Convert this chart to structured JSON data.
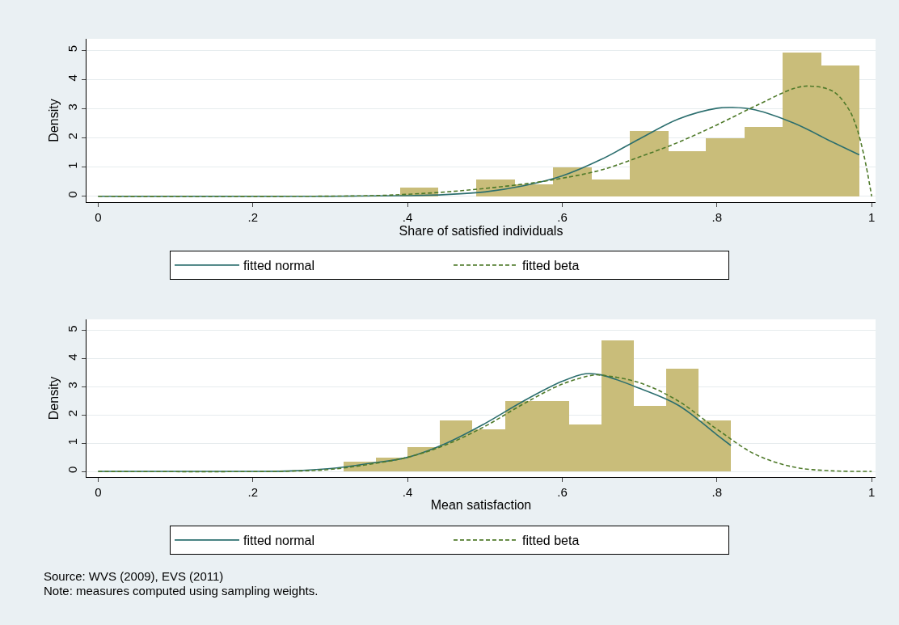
{
  "chart_data": [
    {
      "type": "histogram",
      "xlabel": "Share of satisfied individuals",
      "ylabel": "Density",
      "color": "#c9bd7a",
      "bins": [
        0.39,
        0.44,
        0.489,
        0.539,
        0.588,
        0.638,
        0.687,
        0.737,
        0.786,
        0.836,
        0.885,
        0.935,
        0.984
      ],
      "values": [
        0.3,
        0,
        0.58,
        0.42,
        1.0,
        0.58,
        2.25,
        1.55,
        2.0,
        2.38,
        4.92,
        4.48
      ],
      "series": [
        {
          "type": "line",
          "name": "fitted normal",
          "color": "#2b6e6e",
          "line_style": "solid",
          "x": [
            0,
            0.3,
            0.4,
            0.45,
            0.5,
            0.55,
            0.6,
            0.65,
            0.7,
            0.75,
            0.8,
            0.82,
            0.85,
            0.9,
            0.95,
            0.984
          ],
          "values": [
            0,
            0,
            0.02,
            0.06,
            0.15,
            0.36,
            0.7,
            1.26,
            1.97,
            2.65,
            3.02,
            3.05,
            2.96,
            2.5,
            1.85,
            1.42
          ]
        },
        {
          "type": "line",
          "name": "fitted beta",
          "color": "#4f7a2a",
          "line_style": "dashed",
          "x": [
            0,
            0.35,
            0.4,
            0.45,
            0.5,
            0.55,
            0.6,
            0.65,
            0.7,
            0.75,
            0.8,
            0.85,
            0.9,
            0.92,
            0.95,
            0.97,
            0.98,
            0.99,
            1.0
          ],
          "values": [
            0,
            0.02,
            0.07,
            0.15,
            0.27,
            0.42,
            0.62,
            0.9,
            1.35,
            1.85,
            2.45,
            3.1,
            3.7,
            3.78,
            3.6,
            3.0,
            2.4,
            1.4,
            0
          ]
        }
      ],
      "xlim": [
        -0.015,
        1.005
      ],
      "xticks": [
        0,
        {
          "value": 0.2,
          "label": ".2"
        },
        {
          "value": 0.4,
          "label": ".4"
        },
        {
          "value": 0.6,
          "label": ".6"
        },
        {
          "value": 0.8,
          "label": ".8"
        },
        1
      ],
      "ylim": [
        -0.2,
        5.4
      ],
      "yticks": [
        0,
        1,
        2,
        3,
        4,
        5
      ],
      "grid": "y",
      "legend": "bottom"
    },
    {
      "type": "histogram",
      "xlabel": "Mean satisfaction",
      "ylabel": "Density",
      "color": "#c9bd7a",
      "bins": [
        0.317,
        0.359,
        0.4,
        0.442,
        0.484,
        0.526,
        0.567,
        0.609,
        0.651,
        0.692,
        0.734,
        0.776,
        0.818
      ],
      "values": [
        0.35,
        0.5,
        0.85,
        1.82,
        1.5,
        2.5,
        2.5,
        1.67,
        4.65,
        2.33,
        3.65,
        1.82
      ],
      "series": [
        {
          "type": "line",
          "name": "fitted normal",
          "color": "#2b6e6e",
          "line_style": "solid",
          "x": [
            0,
            0.2,
            0.25,
            0.3,
            0.35,
            0.4,
            0.45,
            0.5,
            0.55,
            0.6,
            0.63,
            0.65,
            0.7,
            0.75,
            0.8,
            0.818
          ],
          "values": [
            0,
            0,
            0.02,
            0.1,
            0.28,
            0.5,
            1.0,
            1.7,
            2.5,
            3.2,
            3.47,
            3.43,
            2.95,
            2.35,
            1.3,
            0.92
          ]
        },
        {
          "type": "line",
          "name": "fitted beta",
          "color": "#4f7a2a",
          "line_style": "dashed",
          "x": [
            0,
            0.25,
            0.3,
            0.35,
            0.4,
            0.45,
            0.5,
            0.55,
            0.6,
            0.64,
            0.65,
            0.7,
            0.75,
            0.8,
            0.85,
            0.9,
            0.95,
            1.0
          ],
          "values": [
            0,
            0.01,
            0.07,
            0.25,
            0.5,
            0.95,
            1.6,
            2.4,
            3.1,
            3.42,
            3.42,
            3.15,
            2.5,
            1.5,
            0.6,
            0.15,
            0.02,
            0
          ]
        }
      ],
      "xlim": [
        -0.015,
        1.005
      ],
      "xticks": [
        0,
        {
          "value": 0.2,
          "label": ".2"
        },
        {
          "value": 0.4,
          "label": ".4"
        },
        {
          "value": 0.6,
          "label": ".6"
        },
        {
          "value": 0.8,
          "label": ".8"
        },
        1
      ],
      "ylim": [
        -0.2,
        5.4
      ],
      "yticks": [
        0,
        1,
        2,
        3,
        4,
        5
      ],
      "grid": "y",
      "legend": "bottom",
      "annotations": [
        "Source: WVS (2009), EVS (2011)",
        "Note: measures computed using sampling weights."
      ]
    }
  ]
}
